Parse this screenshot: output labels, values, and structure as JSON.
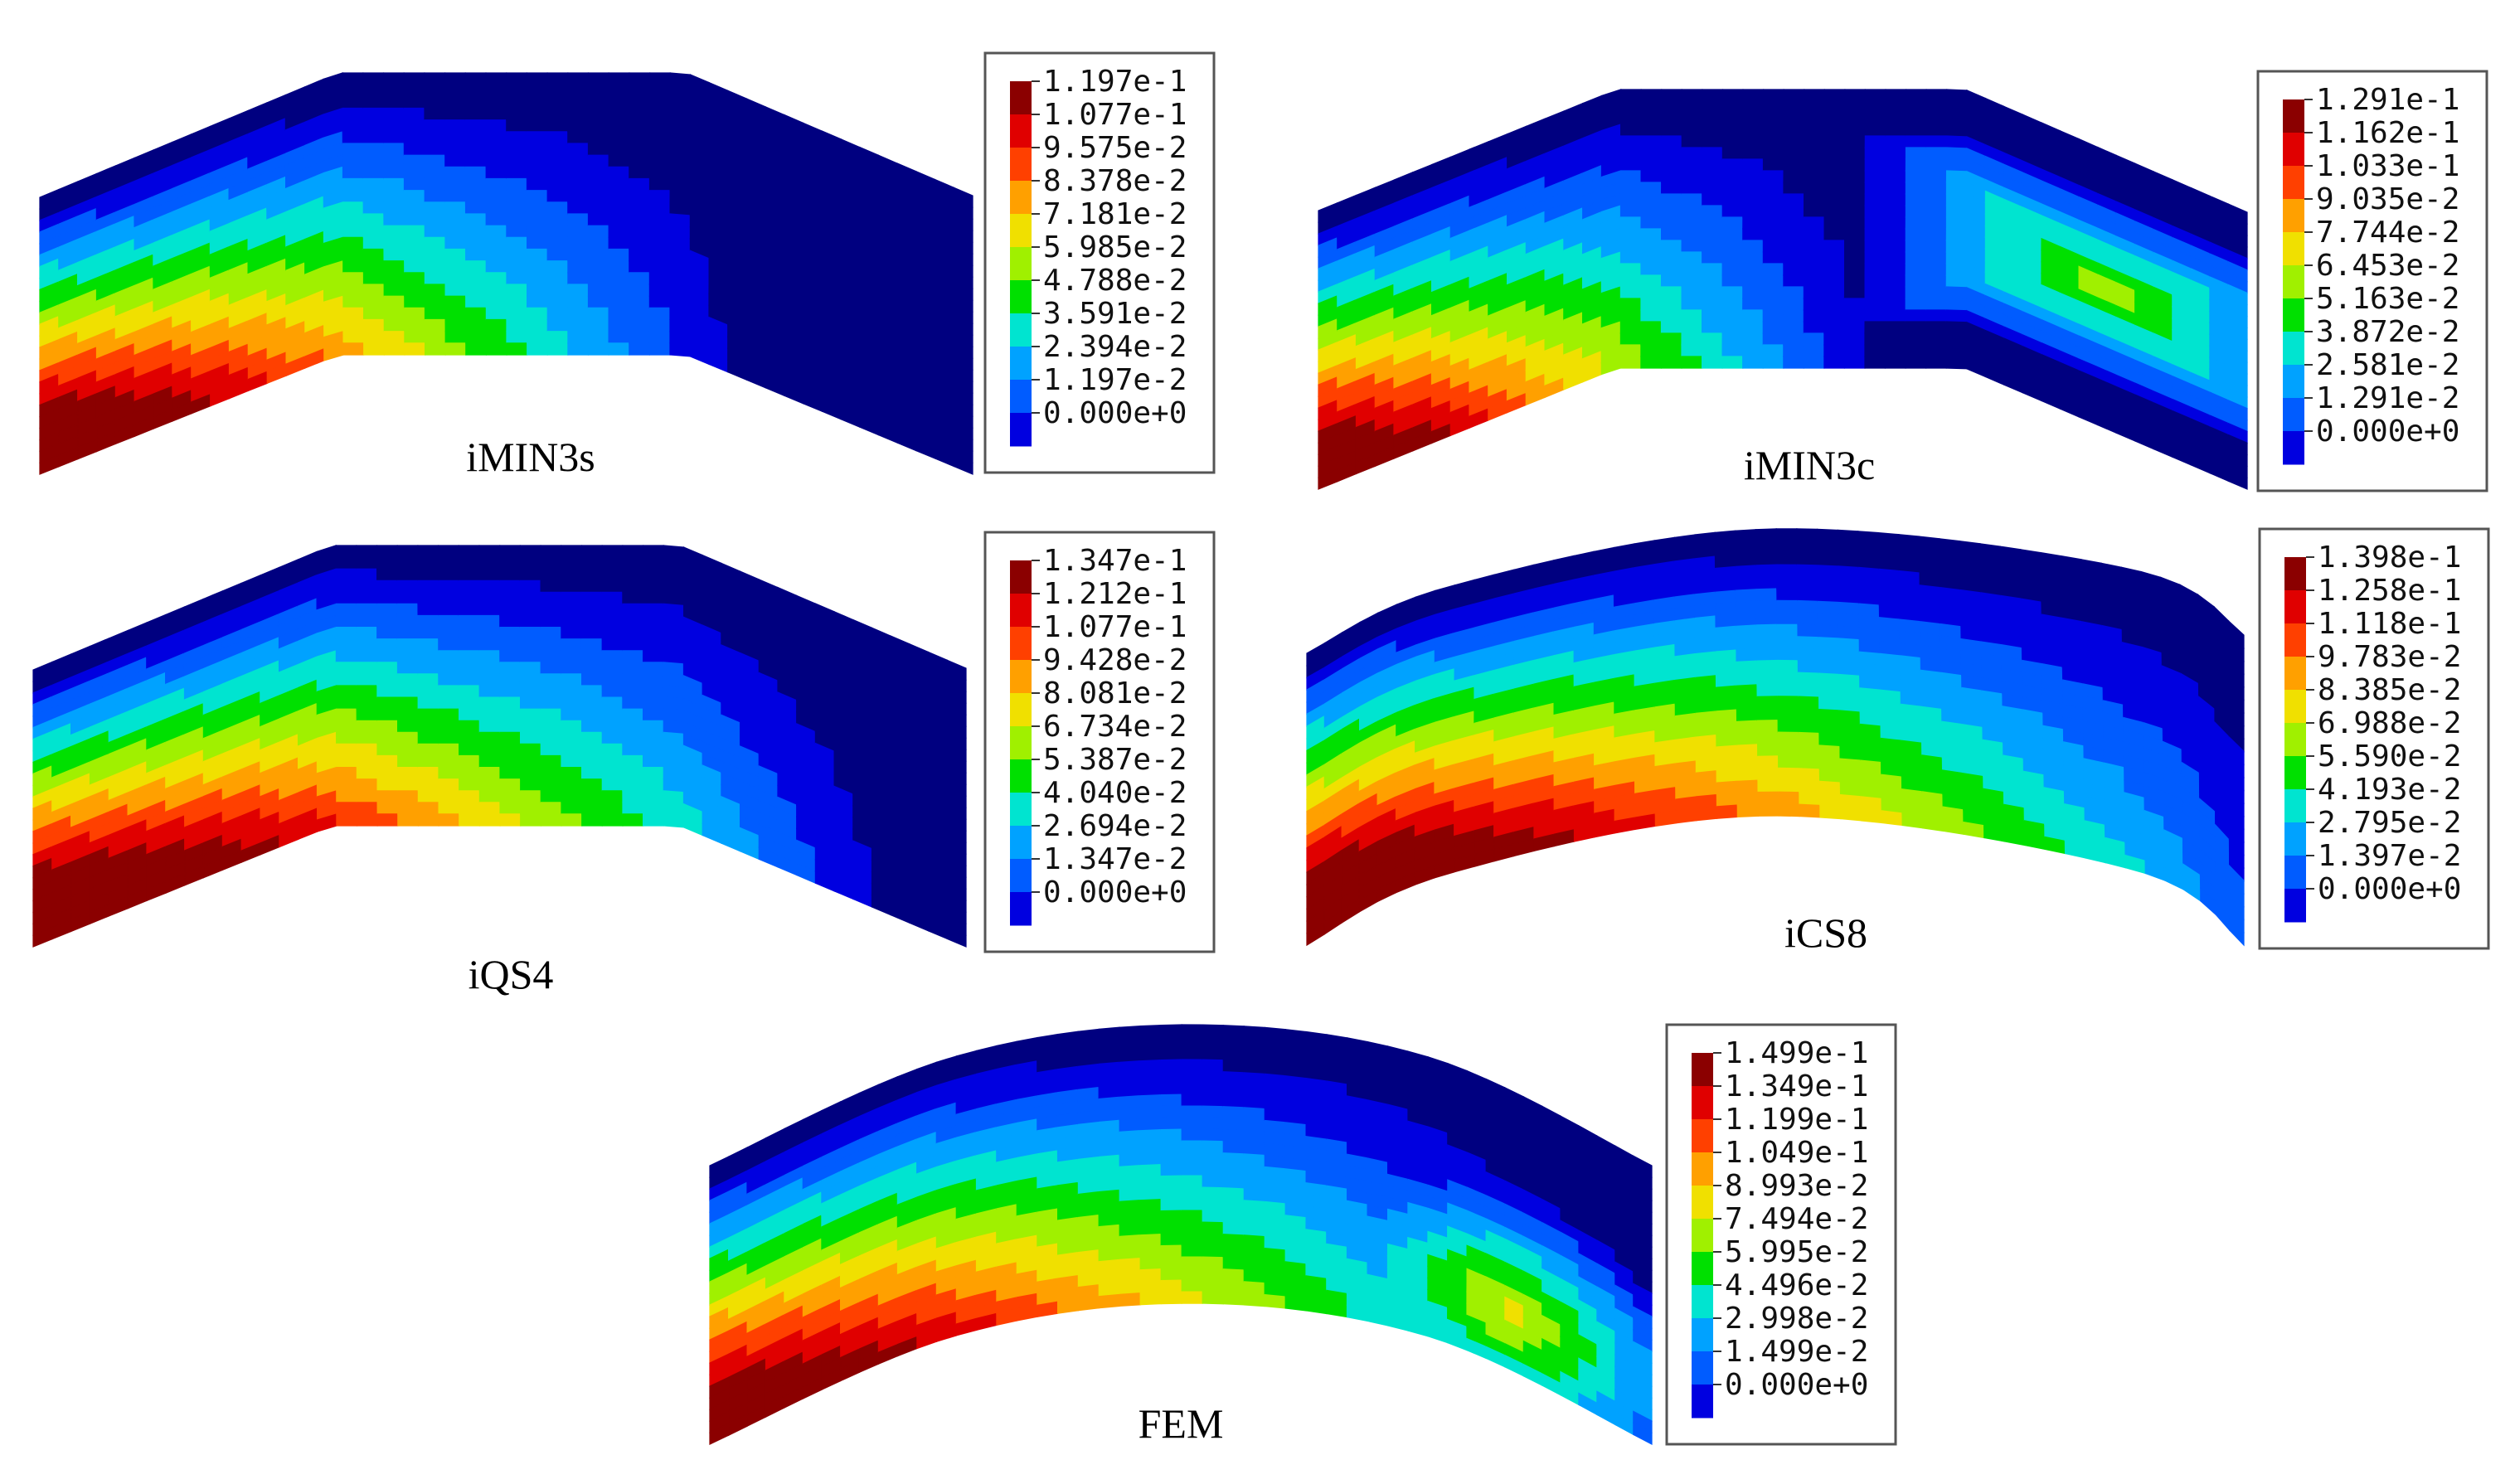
{
  "colors": {
    "scale": [
      "#000080",
      "#0000e0",
      "#005cff",
      "#00a2ff",
      "#00e4d0",
      "#00e000",
      "#a0f000",
      "#f0e000",
      "#ffa000",
      "#ff4000",
      "#e00000",
      "#8b0000"
    ],
    "frame": "#555555"
  },
  "panels": [
    {
      "caption": "iMIN3s",
      "legend": [
        "1.197e-1",
        "1.077e-1",
        "9.575e-2",
        "8.378e-2",
        "7.181e-2",
        "5.985e-2",
        "4.788e-2",
        "3.591e-2",
        "2.394e-2",
        "1.197e-2",
        "0.000e+0"
      ]
    },
    {
      "caption": "iMIN3c",
      "legend": [
        "1.291e-1",
        "1.162e-1",
        "1.033e-1",
        "9.035e-2",
        "7.744e-2",
        "6.453e-2",
        "5.163e-2",
        "3.872e-2",
        "2.581e-2",
        "1.291e-2",
        "0.000e+0"
      ]
    },
    {
      "caption": "iQS4",
      "legend": [
        "1.347e-1",
        "1.212e-1",
        "1.077e-1",
        "9.428e-2",
        "8.081e-2",
        "6.734e-2",
        "5.387e-2",
        "4.040e-2",
        "2.694e-2",
        "1.347e-2",
        "0.000e+0"
      ]
    },
    {
      "caption": "iCS8",
      "legend": [
        "1.398e-1",
        "1.258e-1",
        "1.118e-1",
        "9.783e-2",
        "8.385e-2",
        "6.988e-2",
        "5.590e-2",
        "4.193e-2",
        "2.795e-2",
        "1.397e-2",
        "0.000e+0"
      ]
    },
    {
      "caption": "FEM",
      "legend": [
        "1.499e-1",
        "1.349e-1",
        "1.199e-1",
        "1.049e-1",
        "8.993e-2",
        "7.494e-2",
        "5.995e-2",
        "4.496e-2",
        "2.998e-2",
        "1.499e-2",
        "0.000e+0"
      ]
    }
  ]
}
